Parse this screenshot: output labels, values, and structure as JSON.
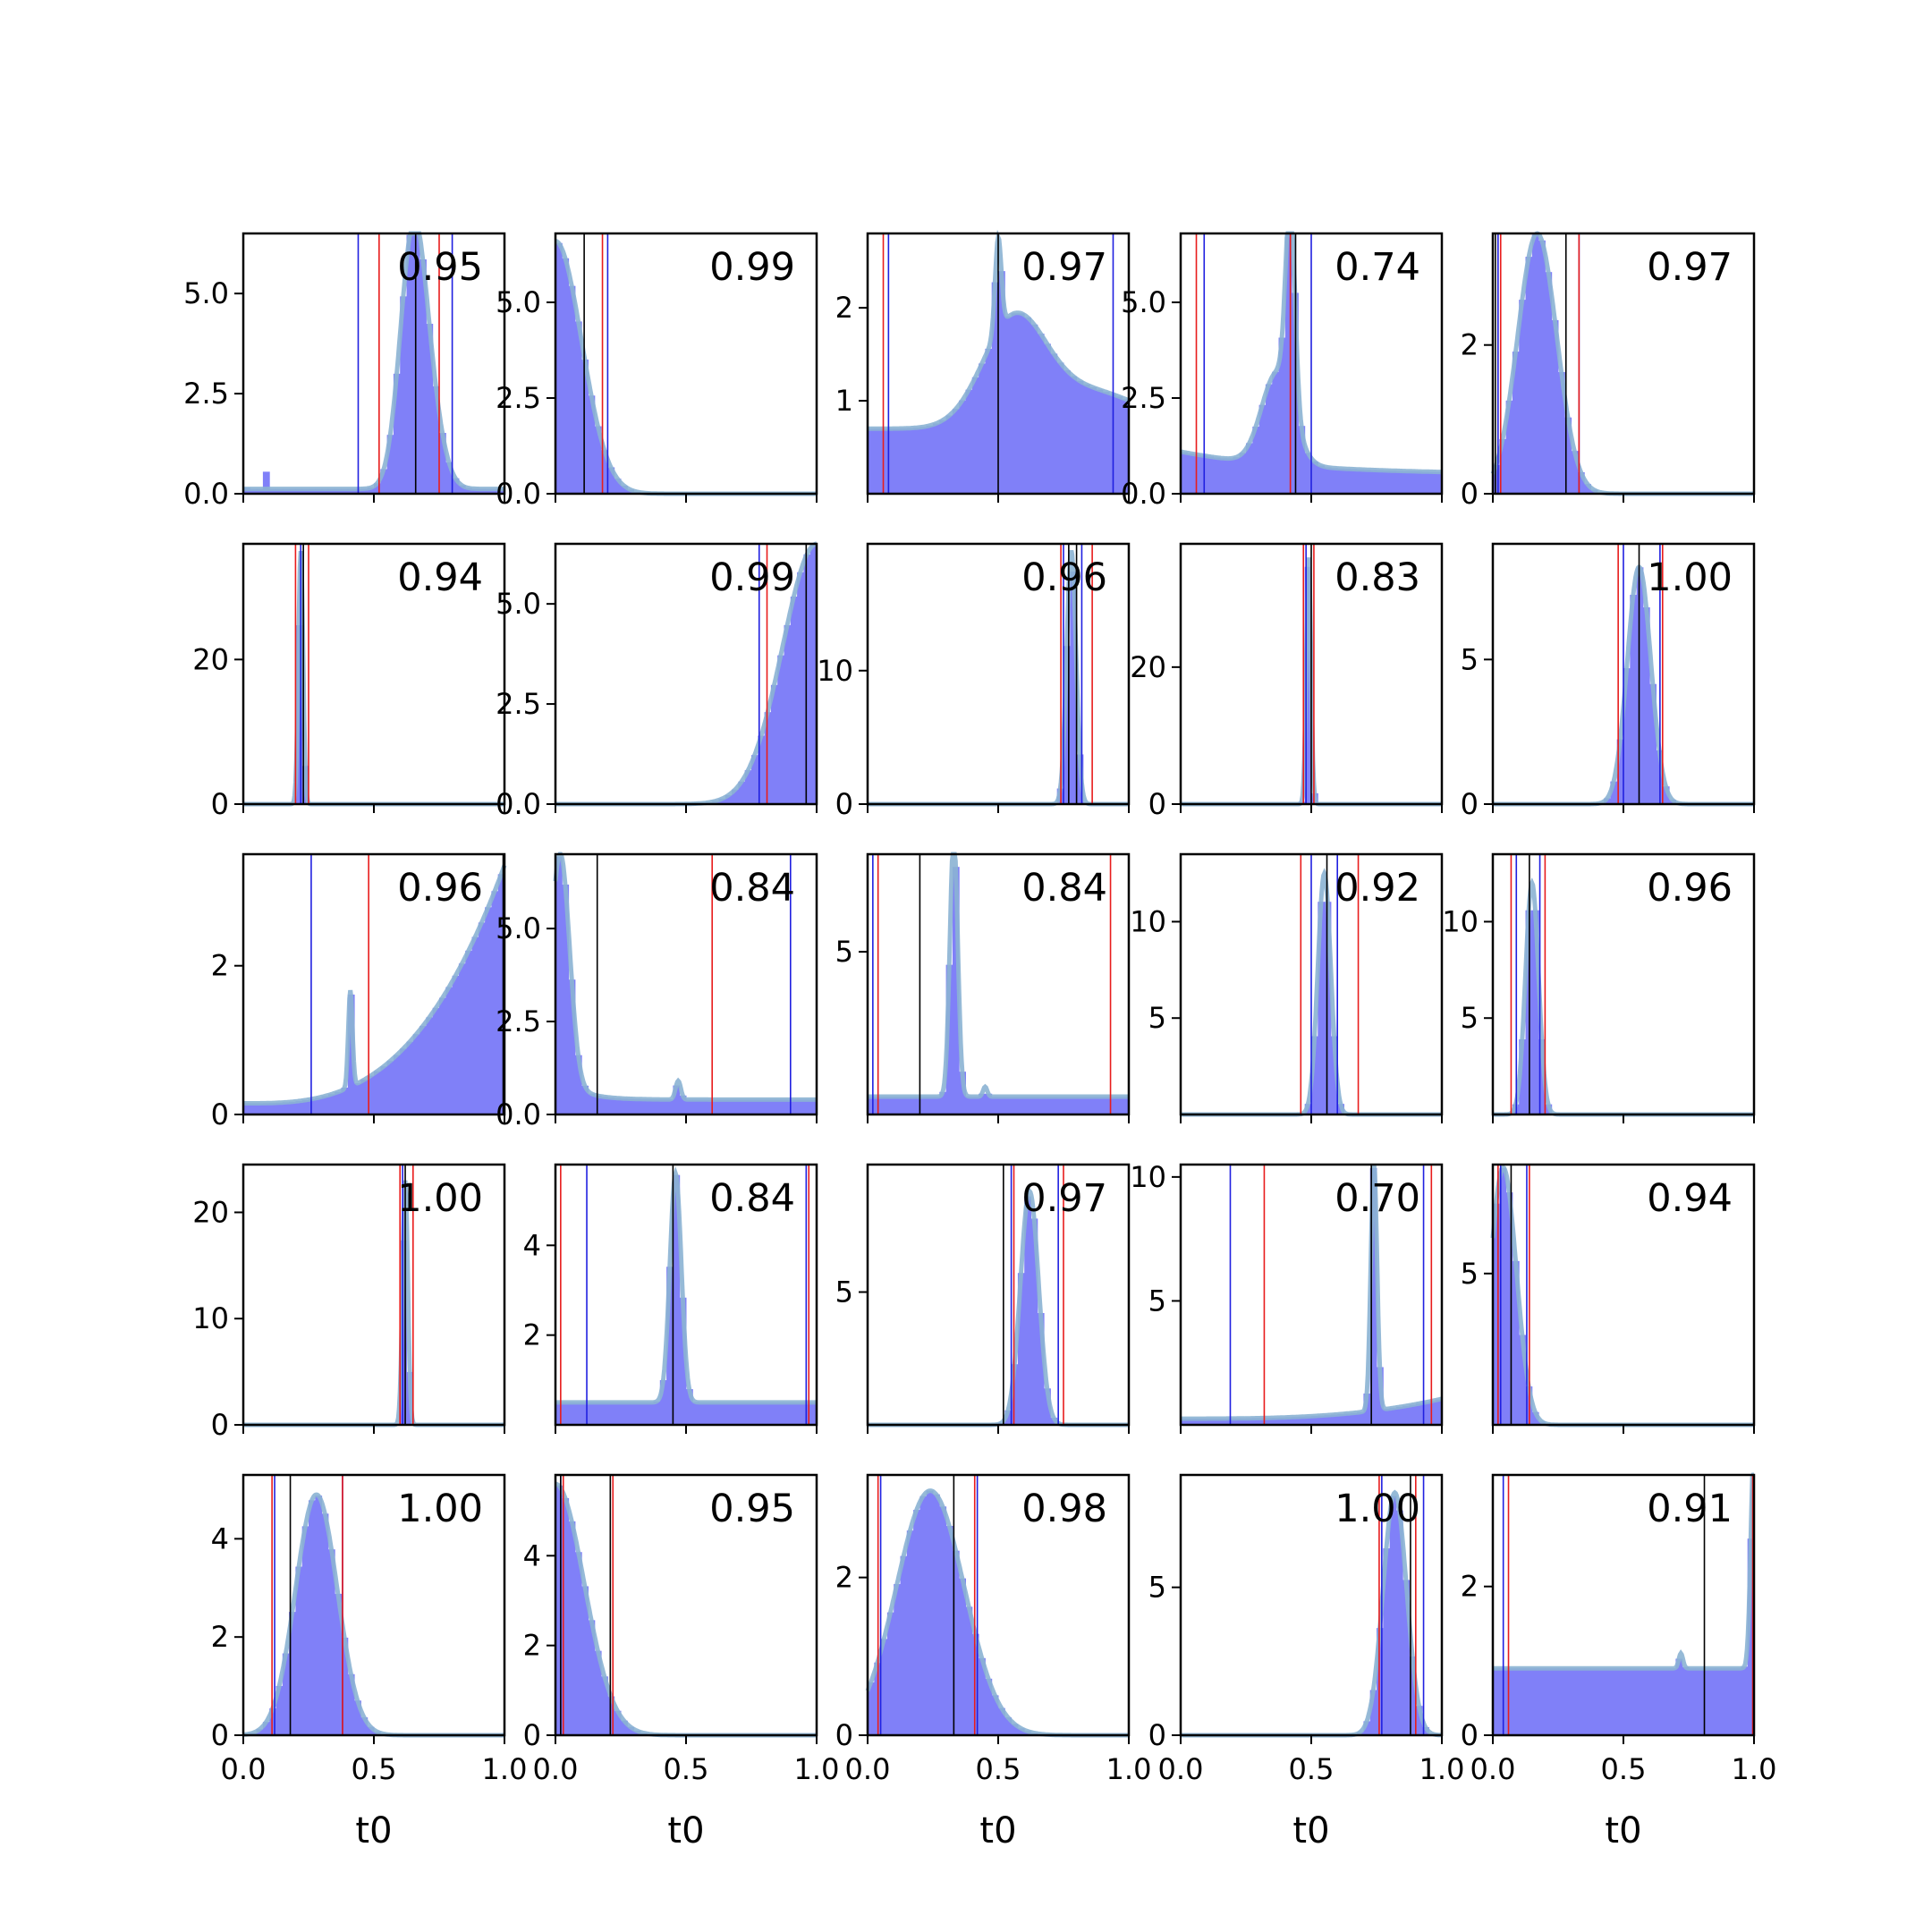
{
  "chart_data": {
    "type": "histogram-grid",
    "rows": 5,
    "cols": 5,
    "xlabel": "t0",
    "xlim": [
      0,
      1
    ],
    "xticks": [
      0,
      0.5,
      1
    ],
    "xtick_labels": [
      "0.0",
      "0.5",
      "1.0"
    ],
    "colors": {
      "hist": "#8080f8",
      "kde": "#8bb3d3",
      "black_line": "#000000",
      "red_line": "#e81c1c",
      "blue_line": "#2020e0"
    },
    "panels": [
      {
        "annotation": "0.95",
        "ymax": 6.5,
        "yticks": [
          0,
          2.5,
          5
        ],
        "ytick_labels": [
          "0.0",
          "2.5",
          "5.0"
        ],
        "comps": [
          [
            0.65,
            0.05,
            6.2
          ],
          [
            0.72,
            0.05,
            1.3
          ]
        ],
        "base": 0.12,
        "bars": [
          [
            0.0,
            0.15
          ],
          [
            0.08,
            0.55
          ]
        ],
        "black": [
          0.66
        ],
        "red": [
          0.52,
          0.75
        ],
        "blue": [
          0.44,
          0.8
        ]
      },
      {
        "annotation": "0.99",
        "ymax": 6.8,
        "yticks": [
          0,
          2.5,
          5
        ],
        "ytick_labels": [
          "0.0",
          "2.5",
          "5.0"
        ],
        "comps": [
          [
            0.0,
            0.1,
            6.6
          ]
        ],
        "base": 0,
        "black": [
          0.11
        ],
        "red": [
          0.18
        ],
        "blue": [
          0.2
        ]
      },
      {
        "annotation": "0.97",
        "ymax": 2.8,
        "yticks": [
          1,
          2
        ],
        "ytick_labels": [
          "1",
          "2"
        ],
        "comps": [
          [
            0.5,
            0.012,
            1.0
          ],
          [
            0.56,
            0.12,
            1.1
          ],
          [
            0.85,
            0.2,
            0.4
          ]
        ],
        "base": 0.7,
        "black": [
          0.5
        ],
        "red": [
          0.06
        ],
        "blue": [
          0.08,
          0.94
        ]
      },
      {
        "annotation": "0.74",
        "ymax": 6.8,
        "yticks": [
          0,
          2.5,
          5
        ],
        "ytick_labels": [
          "0.0",
          "2.5",
          "5.0"
        ],
        "comps": [
          [
            0.42,
            0.018,
            5.2
          ],
          [
            0.37,
            0.06,
            2.4
          ]
        ],
        "base": 0.5,
        "decay": 0.46,
        "black": [
          0.44
        ],
        "red": [
          0.06,
          0.42
        ],
        "blue": [
          0.09,
          0.5
        ]
      },
      {
        "annotation": "0.97",
        "ymax": 3.5,
        "yticks": [
          0,
          2
        ],
        "ytick_labels": [
          "0",
          "2"
        ],
        "comps": [
          [
            0.17,
            0.075,
            3.5
          ]
        ],
        "base": 0,
        "black": [
          0.28,
          0.01
        ],
        "red": [
          0.03,
          0.33
        ],
        "blue": [
          0.02,
          0.33
        ]
      },
      {
        "annotation": "0.94",
        "ymax": 36,
        "yticks": [
          0,
          20
        ],
        "ytick_labels": [
          "0",
          "20"
        ],
        "comps": [
          [
            0.22,
            0.009,
            35
          ]
        ],
        "base": 0,
        "black": [
          0.23
        ],
        "red": [
          0.2,
          0.25
        ],
        "blue": [
          0.22
        ]
      },
      {
        "annotation": "0.99",
        "ymax": 6.5,
        "yticks": [
          0,
          2.5,
          5
        ],
        "ytick_labels": [
          "0.0",
          "2.5",
          "5.0"
        ],
        "comps": [
          [
            1.0,
            0.13,
            6.5
          ]
        ],
        "base": 0,
        "black": [
          0.96
        ],
        "red": [
          0.81
        ],
        "blue": [
          0.78
        ]
      },
      {
        "annotation": "0.96",
        "ymax": 19.5,
        "yticks": [
          0,
          10
        ],
        "ytick_labels": [
          "0",
          "10"
        ],
        "comps": [
          [
            0.78,
            0.018,
            19
          ]
        ],
        "base": 0,
        "black": [
          0.77,
          0.8
        ],
        "red": [
          0.74,
          0.86
        ],
        "blue": [
          0.75,
          0.82
        ]
      },
      {
        "annotation": "0.83",
        "ymax": 38,
        "yticks": [
          0,
          20
        ],
        "ytick_labels": [
          "0",
          "20"
        ],
        "comps": [
          [
            0.49,
            0.009,
            36
          ]
        ],
        "base": 0,
        "black": [
          0.5
        ],
        "red": [
          0.47,
          0.51
        ],
        "blue": [
          0.48
        ]
      },
      {
        "annotation": "1.00",
        "ymax": 9,
        "yticks": [
          0,
          5
        ],
        "ytick_labels": [
          "0",
          "5"
        ],
        "comps": [
          [
            0.56,
            0.045,
            8.2
          ]
        ],
        "base": 0,
        "black": [
          0.56
        ],
        "red": [
          0.48,
          0.65
        ],
        "blue": [
          0.5,
          0.64
        ]
      },
      {
        "annotation": "0.96",
        "ymax": 3.5,
        "yticks": [
          0,
          2
        ],
        "ytick_labels": [
          "0",
          "2"
        ],
        "comps": [
          [
            0.41,
            0.008,
            1.3
          ]
        ],
        "base": 0.15,
        "grow": 3.2,
        "black": [
          0.995
        ],
        "red": [
          0.48
        ],
        "blue": [
          0.26
        ]
      },
      {
        "annotation": "0.84",
        "ymax": 7,
        "yticks": [
          0,
          2.5,
          5
        ],
        "ytick_labels": [
          "0.0",
          "2.5",
          "5.0"
        ],
        "comps": [
          [
            0.02,
            0.035,
            6.0
          ],
          [
            0.47,
            0.01,
            0.5
          ]
        ],
        "base": 0.4,
        "decay": 0.08,
        "decayAmp": 1.3,
        "black": [
          0.16
        ],
        "red": [
          0.6
        ],
        "blue": [
          0.9
        ]
      },
      {
        "annotation": "0.84",
        "ymax": 8,
        "yticks": [
          5
        ],
        "ytick_labels": [
          "5"
        ],
        "comps": [
          [
            0.33,
            0.015,
            8
          ],
          [
            0.45,
            0.008,
            0.3
          ]
        ],
        "base": 0.55,
        "black": [
          0.2
        ],
        "red": [
          0.04,
          0.93
        ],
        "blue": [
          0.02
        ]
      },
      {
        "annotation": "0.92",
        "ymax": 13.5,
        "yticks": [
          5,
          10
        ],
        "ytick_labels": [
          "5",
          "10"
        ],
        "comps": [
          [
            0.55,
            0.025,
            12.5
          ]
        ],
        "base": 0,
        "black": [
          0.56
        ],
        "red": [
          0.46,
          0.68
        ],
        "blue": [
          0.5,
          0.6
        ]
      },
      {
        "annotation": "0.96",
        "ymax": 13.5,
        "yticks": [
          5,
          10
        ],
        "ytick_labels": [
          "5",
          "10"
        ],
        "comps": [
          [
            0.15,
            0.025,
            12
          ]
        ],
        "base": 0,
        "black": [
          0.14
        ],
        "red": [
          0.07,
          0.2
        ],
        "blue": [
          0.09,
          0.18
        ]
      },
      {
        "annotation": "1.00",
        "ymax": 24.5,
        "yticks": [
          0,
          10,
          20
        ],
        "ytick_labels": [
          "0",
          "10",
          "20"
        ],
        "comps": [
          [
            0.62,
            0.01,
            23
          ]
        ],
        "base": 0,
        "black": [
          0.62
        ],
        "red": [
          0.6,
          0.65
        ],
        "blue": [
          0.61
        ]
      },
      {
        "annotation": "0.84",
        "ymax": 5.8,
        "yticks": [
          2,
          4
        ],
        "ytick_labels": [
          "2",
          "4"
        ],
        "comps": [
          [
            0.46,
            0.022,
            5.1
          ]
        ],
        "base": 0.5,
        "black": [
          0.45
        ],
        "red": [
          0.02,
          0.97
        ],
        "blue": [
          0.12,
          0.96
        ]
      },
      {
        "annotation": "0.97",
        "ymax": 9.8,
        "yticks": [
          5
        ],
        "ytick_labels": [
          "5"
        ],
        "comps": [
          [
            0.62,
            0.035,
            8.8
          ]
        ],
        "base": 0,
        "black": [
          0.52
        ],
        "red": [
          0.56,
          0.75
        ],
        "blue": [
          0.55,
          0.73
        ]
      },
      {
        "annotation": "0.70",
        "ymax": 10.5,
        "yticks": [
          5,
          10
        ],
        "ytick_labels": [
          "5",
          "10"
        ],
        "comps": [
          [
            0.74,
            0.012,
            10
          ]
        ],
        "base": 0.25,
        "grow": 0.8,
        "black": [
          0.73
        ],
        "red": [
          0.32,
          0.96
        ],
        "blue": [
          0.19,
          0.93
        ]
      },
      {
        "annotation": "0.94",
        "ymax": 8.6,
        "yticks": [
          5
        ],
        "ytick_labels": [
          "5"
        ],
        "comps": [
          [
            0.04,
            0.05,
            8.5
          ]
        ],
        "base": 0,
        "black": [
          0.07
        ],
        "red": [
          0.02,
          0.14
        ],
        "blue": [
          0.03,
          0.13
        ]
      },
      {
        "annotation": "1.00",
        "ymax": 5.3,
        "yticks": [
          0,
          2,
          4
        ],
        "ytick_labels": [
          "0",
          "2",
          "4"
        ],
        "comps": [
          [
            0.28,
            0.08,
            4.9
          ]
        ],
        "base": 0,
        "black": [
          0.18
        ],
        "red": [
          0.11,
          0.38
        ],
        "blue": [
          0.12,
          0.38
        ]
      },
      {
        "annotation": "0.95",
        "ymax": 5.8,
        "yticks": [
          0,
          2,
          4
        ],
        "ytick_labels": [
          "0",
          "2",
          "4"
        ],
        "comps": [
          [
            0.0,
            0.11,
            5.6
          ]
        ],
        "base": 0,
        "black": [
          0.02,
          0.21
        ],
        "red": [
          0.03,
          0.22
        ],
        "blue": [
          0.02
        ]
      },
      {
        "annotation": "0.98",
        "ymax": 3.3,
        "yticks": [
          0,
          2
        ],
        "ytick_labels": [
          "0",
          "2"
        ],
        "comps": [
          [
            0.24,
            0.13,
            3.1
          ]
        ],
        "base": 0,
        "black": [
          0.33
        ],
        "red": [
          0.04,
          0.41
        ],
        "blue": [
          0.05,
          0.42
        ]
      },
      {
        "annotation": "1.00",
        "ymax": 8.8,
        "yticks": [
          0,
          5
        ],
        "ytick_labels": [
          "0",
          "5"
        ],
        "comps": [
          [
            0.82,
            0.045,
            8.2
          ]
        ],
        "base": 0,
        "black": [
          0.88
        ],
        "red": [
          0.76,
          0.9
        ],
        "blue": [
          0.77,
          0.93
        ]
      },
      {
        "annotation": "0.91",
        "ymax": 3.5,
        "yticks": [
          0,
          2
        ],
        "ytick_labels": [
          "0",
          "2"
        ],
        "comps": [
          [
            1.0,
            0.012,
            3.0
          ],
          [
            0.72,
            0.008,
            0.2
          ]
        ],
        "base": 0.9,
        "black": [
          0.81
        ],
        "red": [
          0.06,
          0.995
        ],
        "blue": [
          0.04
        ]
      }
    ]
  }
}
